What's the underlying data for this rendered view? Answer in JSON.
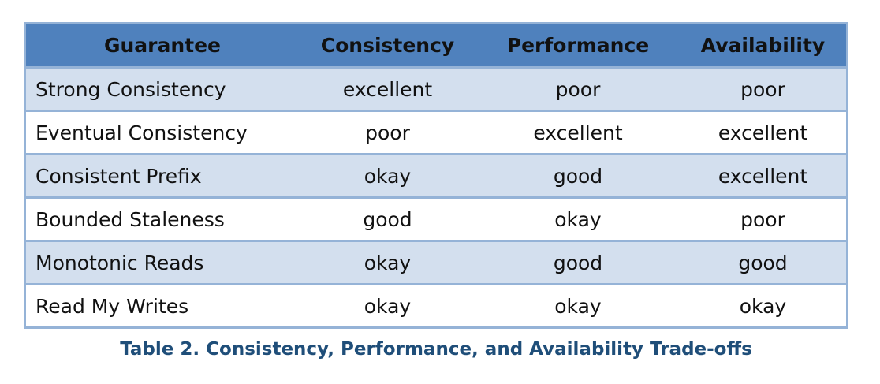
{
  "table": {
    "headers": [
      "Guarantee",
      "Consistency",
      "Performance",
      "Availability"
    ],
    "rows": [
      {
        "guarantee": "Strong Consistency",
        "consistency": "excellent",
        "performance": "poor",
        "availability": "poor"
      },
      {
        "guarantee": "Eventual Consistency",
        "consistency": "poor",
        "performance": "excellent",
        "availability": "excellent"
      },
      {
        "guarantee": "Consistent Prefix",
        "consistency": "okay",
        "performance": "good",
        "availability": "excellent"
      },
      {
        "guarantee": "Bounded Staleness",
        "consistency": "good",
        "performance": "okay",
        "availability": "poor"
      },
      {
        "guarantee": "Monotonic Reads",
        "consistency": "okay",
        "performance": "good",
        "availability": "good"
      },
      {
        "guarantee": "Read My Writes",
        "consistency": "okay",
        "performance": "okay",
        "availability": "okay"
      }
    ]
  },
  "caption": "Table 2. Consistency, Performance, and Availability Trade-offs",
  "colors": {
    "header_bg": "#4f81bd",
    "band_bg": "#d3dfee",
    "border": "#95b3d7",
    "caption": "#1f4e79"
  }
}
